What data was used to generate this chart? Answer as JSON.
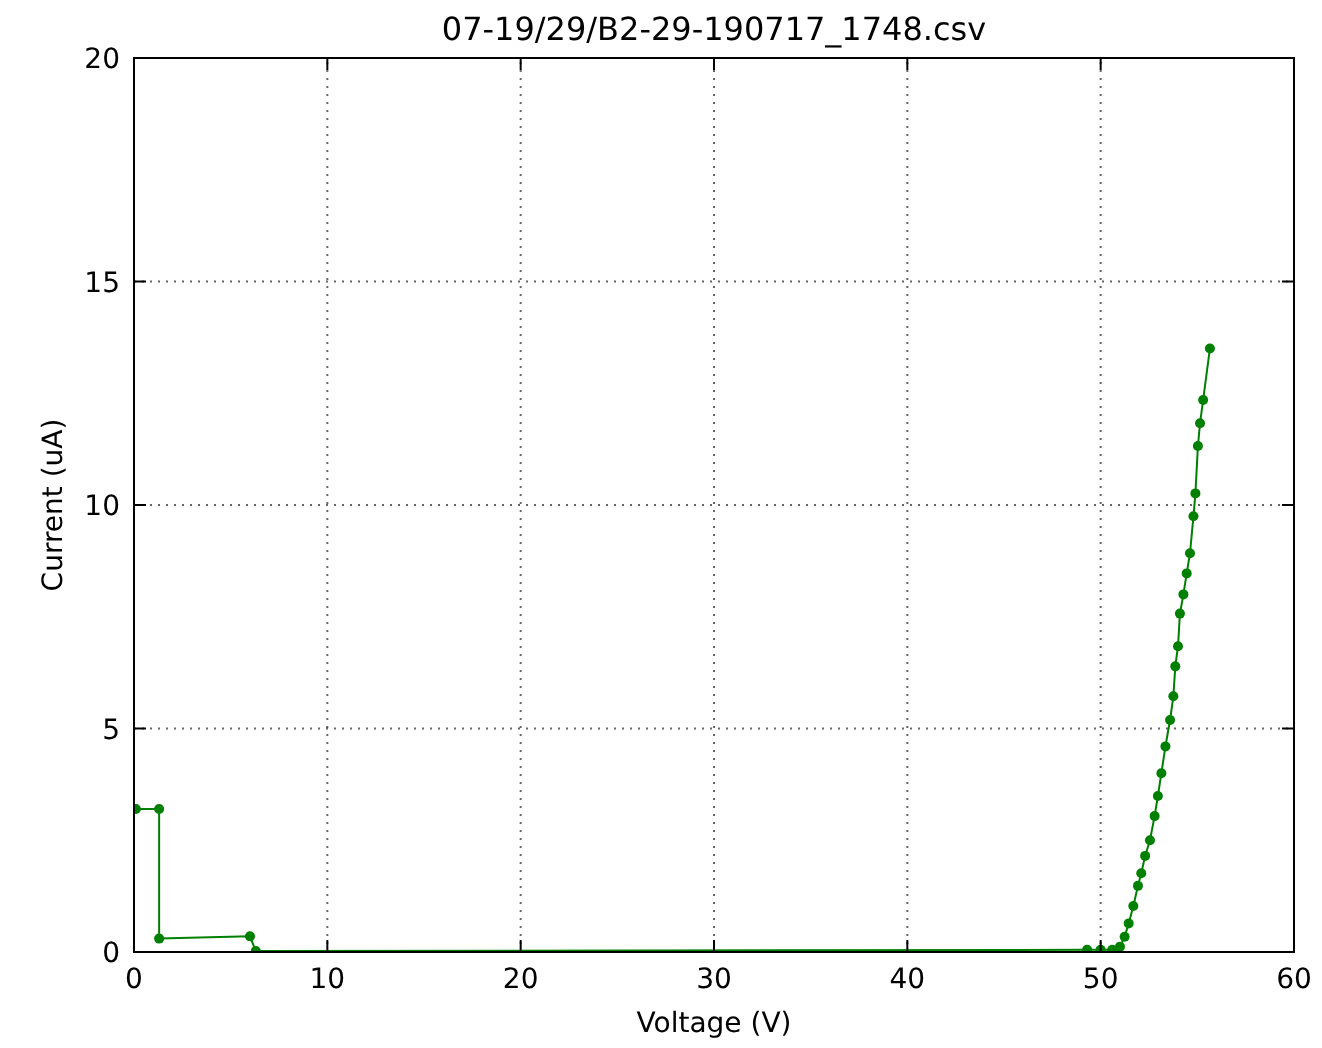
{
  "chart_data": {
    "type": "line",
    "title": "07-19/29/B2-29-190717_1748.csv",
    "xlabel": "Voltage (V)",
    "ylabel": "Current (uA)",
    "xlim": [
      0,
      60
    ],
    "ylim": [
      0,
      20
    ],
    "xticks": [
      0,
      10,
      20,
      30,
      40,
      50,
      60
    ],
    "yticks": [
      0,
      5,
      10,
      15,
      20
    ],
    "grid": true,
    "marker": "circle",
    "line_style": "solid",
    "series": [
      {
        "color": "#008000",
        "x": [
          0.1,
          1.3,
          1.3,
          6.0,
          6.3,
          49.3,
          50.0,
          50.6,
          51.0,
          51.24,
          51.45,
          51.69,
          51.93,
          52.1,
          52.3,
          52.55,
          52.79,
          52.96,
          53.14,
          53.35,
          53.59,
          53.76,
          53.86,
          54.0,
          54.1,
          54.28,
          54.45,
          54.62,
          54.8,
          54.9,
          55.03,
          55.14,
          55.3,
          55.65
        ],
        "values": [
          3.2,
          3.2,
          0.3,
          0.35,
          0.02,
          0.05,
          0.05,
          0.05,
          0.12,
          0.34,
          0.64,
          1.03,
          1.48,
          1.76,
          2.15,
          2.5,
          3.04,
          3.49,
          4.0,
          4.6,
          5.19,
          5.72,
          6.39,
          6.84,
          7.57,
          8.0,
          8.47,
          8.92,
          9.75,
          10.26,
          11.32,
          11.83,
          12.35,
          13.5
        ]
      }
    ]
  }
}
